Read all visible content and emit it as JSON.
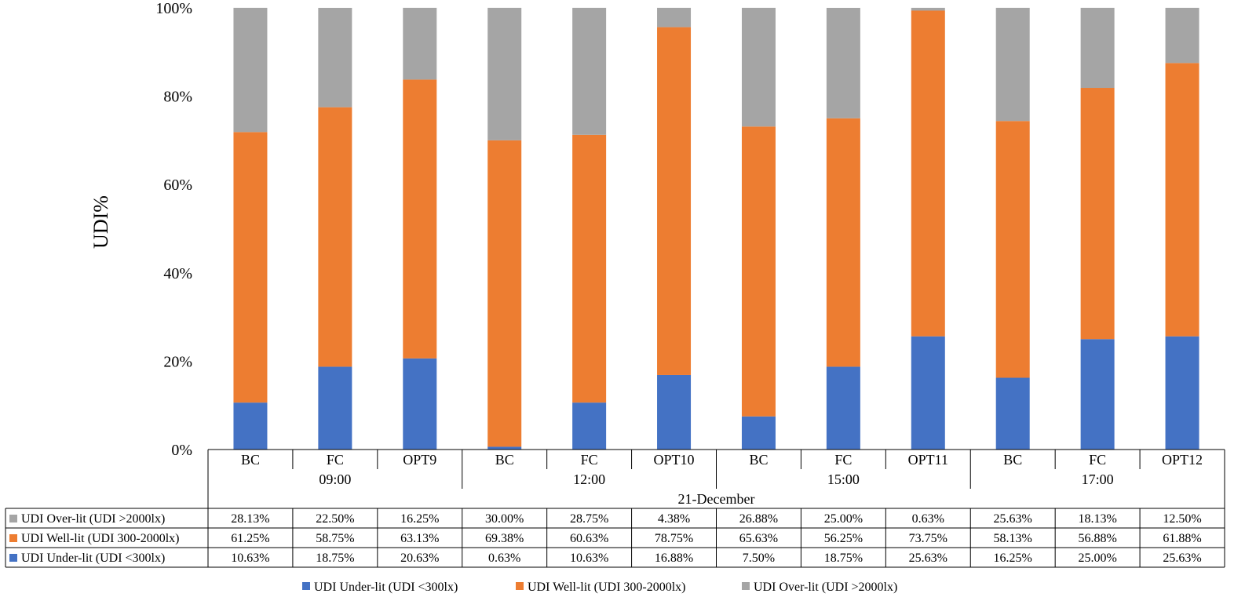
{
  "chart_data": {
    "type": "bar",
    "stacked": true,
    "percent": true,
    "ylabel": "UDI%",
    "ylim": [
      0,
      100
    ],
    "yticks": [
      "0%",
      "20%",
      "40%",
      "60%",
      "80%",
      "100%"
    ],
    "grid": false,
    "legend_position": "bottom",
    "top_group": "21-December",
    "groups": [
      {
        "label": "09:00",
        "categories": [
          "BC",
          "FC",
          "OPT9"
        ]
      },
      {
        "label": "12:00",
        "categories": [
          "BC",
          "FC",
          "OPT10"
        ]
      },
      {
        "label": "15:00",
        "categories": [
          "BC",
          "FC",
          "OPT11"
        ]
      },
      {
        "label": "17:00",
        "categories": [
          "BC",
          "FC",
          "OPT12"
        ]
      }
    ],
    "categories": [
      "BC",
      "FC",
      "OPT9",
      "BC",
      "FC",
      "OPT10",
      "BC",
      "FC",
      "OPT11",
      "BC",
      "FC",
      "OPT12"
    ],
    "series": [
      {
        "name": "UDI Under-lit (UDI <300lx)",
        "color": "#4472C4",
        "values": [
          10.63,
          18.75,
          20.63,
          0.63,
          10.63,
          16.88,
          7.5,
          18.75,
          25.63,
          16.25,
          25.0,
          25.63
        ],
        "labels": [
          "10.63%",
          "18.75%",
          "20.63%",
          "0.63%",
          "10.63%",
          "16.88%",
          "7.50%",
          "18.75%",
          "25.63%",
          "16.25%",
          "25.00%",
          "25.63%"
        ]
      },
      {
        "name": "UDI Well-lit (UDI 300-2000lx)",
        "color": "#ED7D31",
        "values": [
          61.25,
          58.75,
          63.13,
          69.38,
          60.63,
          78.75,
          65.63,
          56.25,
          73.75,
          58.13,
          56.88,
          61.88
        ],
        "labels": [
          "61.25%",
          "58.75%",
          "63.13%",
          "69.38%",
          "60.63%",
          "78.75%",
          "65.63%",
          "56.25%",
          "73.75%",
          "58.13%",
          "56.88%",
          "61.88%"
        ]
      },
      {
        "name": "UDI Over-lit (UDI >2000lx)",
        "color": "#A5A5A5",
        "values": [
          28.13,
          22.5,
          16.25,
          30.0,
          28.75,
          4.38,
          26.88,
          25.0,
          0.63,
          25.63,
          18.13,
          12.5
        ],
        "labels": [
          "28.13%",
          "22.50%",
          "16.25%",
          "30.00%",
          "28.75%",
          "4.38%",
          "26.88%",
          "25.00%",
          "0.63%",
          "25.63%",
          "18.13%",
          "12.50%"
        ]
      }
    ],
    "table_row_order": [
      2,
      1,
      0
    ]
  }
}
